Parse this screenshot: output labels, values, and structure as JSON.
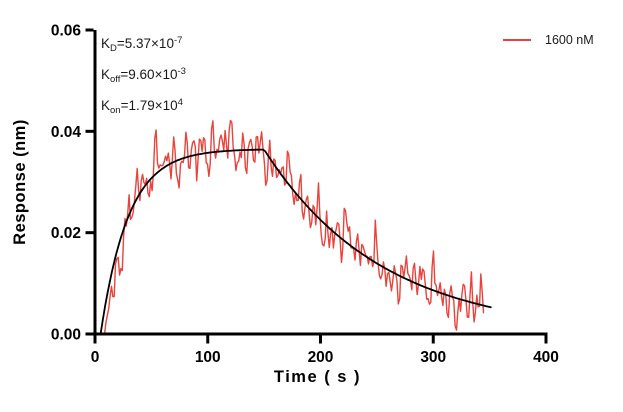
{
  "page": {
    "background": "#ffffff"
  },
  "annotations": {
    "lines": [
      {
        "base": "K",
        "sub": "D",
        "eq": "=5.37×10",
        "sup": "-7"
      },
      {
        "base": "K",
        "sub": "off",
        "eq": "=9.60×10",
        "sup": "-3"
      },
      {
        "base": "K",
        "sub": "on",
        "eq": "=1.79×10",
        "sup": "4"
      }
    ]
  },
  "legend": {
    "label": "1600 nM",
    "color": "#e8433c"
  },
  "chart_data": {
    "type": "line",
    "title": "",
    "xlabel": "Time ( s )",
    "ylabel": "Response (nm)",
    "xlim": [
      0,
      400
    ],
    "ylim": [
      0,
      0.06
    ],
    "grid": false,
    "legend_position": "top-right",
    "axis_color": "#000000",
    "x_ticks": [
      {
        "v": 0,
        "label": "0"
      },
      {
        "v": 100,
        "label": "100"
      },
      {
        "v": 200,
        "label": "200"
      },
      {
        "v": 300,
        "label": "300"
      },
      {
        "v": 400,
        "label": "400"
      }
    ],
    "y_ticks": [
      {
        "v": 0.0,
        "label": "0.00"
      },
      {
        "v": 0.02,
        "label": "0.02"
      },
      {
        "v": 0.04,
        "label": "0.04"
      },
      {
        "v": 0.06,
        "label": "0.06"
      }
    ],
    "kinetics": {
      "KD_M": 5.37e-07,
      "koff_per_s": 0.0096,
      "kon_per_Ms": 17900.0,
      "concentration_nM": 1600
    },
    "series": [
      {
        "name": "1600 nM",
        "role": "data",
        "color": "#e8433c",
        "style": "noisy"
      },
      {
        "name": "fit",
        "role": "fit",
        "color": "#000000",
        "style": "smooth"
      }
    ],
    "model": {
      "plateau": 0.0365,
      "t_assoc_start_fit": 5,
      "k_obs_fit": 0.041,
      "t_assoc_start_data": 8.5,
      "k_obs_data": 0.047,
      "t_dissoc": 150,
      "k_off": 0.0096,
      "t_end_fit": 351,
      "t_end_data": 345,
      "noise_seed": 7,
      "noise_base_amp": 1.0,
      "noise_end_boost_start": 324,
      "noise_end_boost_max": 2.3
    }
  }
}
